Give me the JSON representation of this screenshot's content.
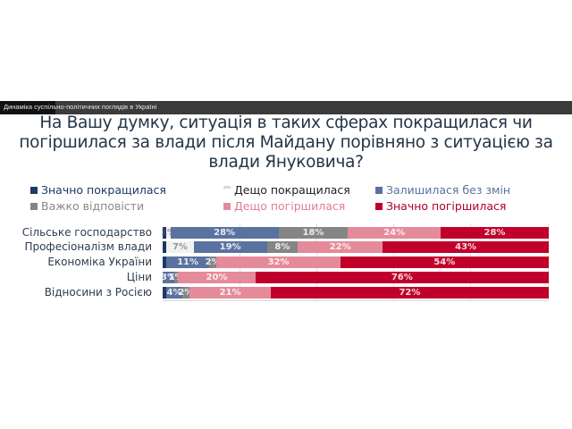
{
  "header": {
    "window_caption": "Динаміка суспільно-політичних поглядів в Україні"
  },
  "chart_data": {
    "type": "bar",
    "orientation": "horizontal-stacked-100",
    "title": "На Вашу думку, ситуація в таких сферах покращилася чи погіршилася за влади після Майдану порівняно з ситуацією за влади Януковича?",
    "xlabel": "",
    "ylabel": "",
    "xlim": [
      0,
      100
    ],
    "grid": true,
    "legend_position": "top",
    "categories": [
      "Сільське господарство",
      "Професіоналізм влади",
      "Економіка України",
      "Ціни",
      "Відносини з Росією"
    ],
    "series": [
      {
        "name": "Значно покращилася",
        "color": "#1f3864",
        "values": [
          1,
          1,
          1,
          0,
          1
        ],
        "labels": [
          "",
          "",
          "",
          "",
          ""
        ]
      },
      {
        "name": "Дещо покращилася",
        "color": "#f2f2f2",
        "values": [
          1,
          7,
          0,
          0,
          0
        ],
        "labels": [
          "1%",
          "7%",
          "",
          "",
          ""
        ]
      },
      {
        "name": "Залишилася без змін",
        "color": "#5a72a0",
        "values": [
          28,
          19,
          11,
          3,
          4
        ],
        "labels": [
          "28%",
          "19%",
          "11%",
          "3%",
          "4%"
        ]
      },
      {
        "name": "Важко відповісти",
        "color": "#858585",
        "values": [
          18,
          8,
          2,
          1,
          2
        ],
        "labels": [
          "18%",
          "8%",
          "2%",
          "1%",
          "2%"
        ]
      },
      {
        "name": "Дещо погіршилася",
        "color": "#e58a9a",
        "values": [
          24,
          22,
          32,
          20,
          21
        ],
        "labels": [
          "24%",
          "22%",
          "32%",
          "20%",
          "21%"
        ]
      },
      {
        "name": "Значно погіршилася",
        "color": "#c0002a",
        "values": [
          28,
          43,
          54,
          76,
          72
        ],
        "labels": [
          "28%",
          "43%",
          "54%",
          "76%",
          "72%"
        ]
      }
    ]
  },
  "legend": [
    {
      "label": "Значно покращилася",
      "color": "#1f3864",
      "text_color": "#1f3864"
    },
    {
      "label": "Дещо покращилася",
      "color": "#d9d9d9",
      "text_color": "#222222"
    },
    {
      "label": "Залишилася без змін",
      "color": "#5a72a0",
      "text_color": "#5a72a0"
    },
    {
      "label": "Важко відповісти",
      "color": "#858585",
      "text_color": "#8a8a8a"
    },
    {
      "label": "Дещо погіршилася",
      "color": "#e58a9a",
      "text_color": "#e07d90"
    },
    {
      "label": "Значно погіршилася",
      "color": "#c0002a",
      "text_color": "#b0002a"
    }
  ]
}
